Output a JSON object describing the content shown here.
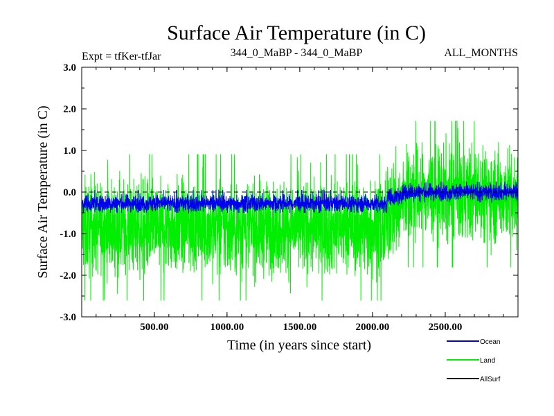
{
  "chart_data": {
    "type": "line",
    "title": "Surface Air Temperature (in C)",
    "subtitle_left": "Expt = tfKer-tfJar",
    "subtitle_center": "344_0_MaBP - 344_0_MaBP",
    "subtitle_right": "ALL_MONTHS",
    "xlabel": "Time (in years since start)",
    "ylabel": "Surface Air Temperature (in C)",
    "xlim": [
      1,
      3000
    ],
    "ylim": [
      -3.0,
      3.0
    ],
    "xticks": [
      500,
      1000,
      1500,
      2000,
      2500
    ],
    "xtick_labels": [
      "500.00",
      "1000.00",
      "1500.00",
      "2000.00",
      "2500.00"
    ],
    "yticks": [
      -3.0,
      -2.0,
      -1.0,
      0.0,
      1.0,
      2.0,
      3.0
    ],
    "ytick_labels": [
      "-3.0",
      "-2.0",
      "-1.0",
      "0.0",
      "1.0",
      "2.0",
      "3.0"
    ],
    "zero_line": true,
    "grid": false,
    "legend_position": "bottom-right",
    "series": [
      {
        "name": "Land",
        "color": "#00ee00",
        "segments": [
          {
            "x_range": [
              1,
              2100
            ],
            "mean": -0.85,
            "spread": 0.55,
            "min": -2.9,
            "max": 1.1
          },
          {
            "x_range": [
              2100,
              2200
            ],
            "mean": -0.4,
            "spread": 0.6,
            "min": -2.0,
            "max": 1.3
          },
          {
            "x_range": [
              2200,
              3000
            ],
            "mean": -0.05,
            "spread": 0.55,
            "min": -1.9,
            "max": 2.1
          }
        ]
      },
      {
        "name": "Ocean",
        "color": "#0000ee",
        "segments": [
          {
            "x_range": [
              1,
              2100
            ],
            "mean": -0.27,
            "spread": 0.1,
            "min": -0.5,
            "max": 0.05
          },
          {
            "x_range": [
              2100,
              2200
            ],
            "mean": -0.12,
            "spread": 0.1,
            "min": -0.35,
            "max": 0.1
          },
          {
            "x_range": [
              2200,
              3000
            ],
            "mean": 0.0,
            "spread": 0.1,
            "min": -0.25,
            "max": 0.25
          }
        ]
      },
      {
        "name": "AllSurf",
        "color": "#000000",
        "segments": []
      }
    ]
  }
}
